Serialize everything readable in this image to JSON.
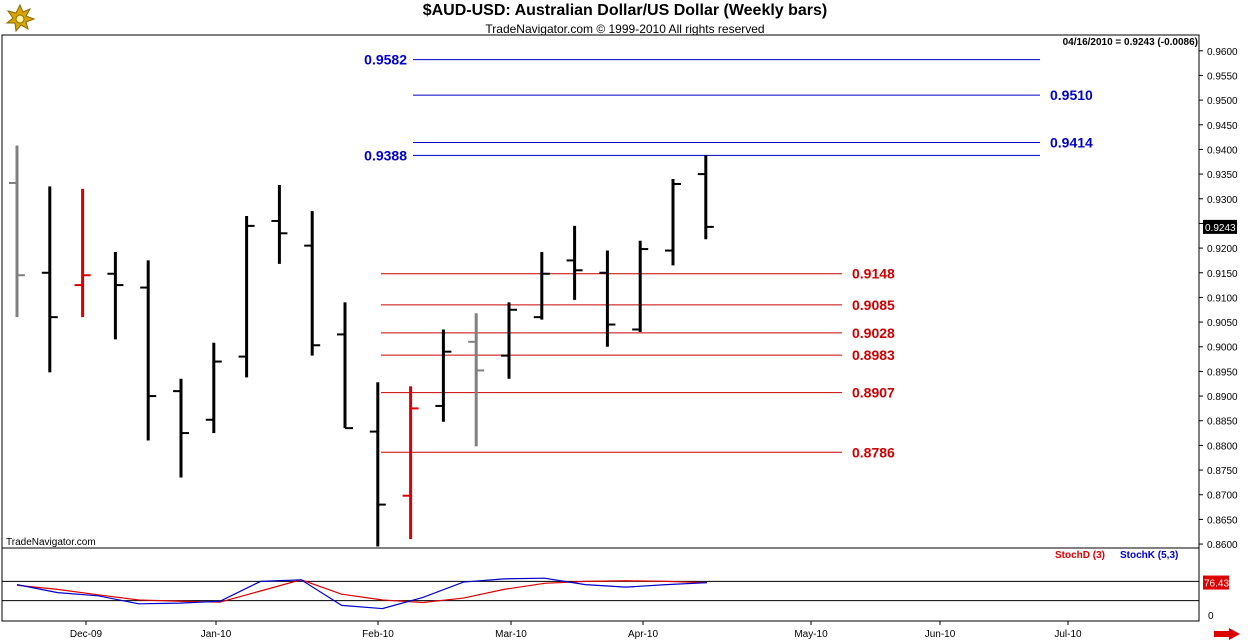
{
  "header": {
    "title": "$AUD-USD:  Australian Dollar/US Dollar  (Weekly bars)",
    "subtitle": "TradeNavigator.com © 1999-2010 All rights reserved",
    "readout": "04/16/2010 = 0.9243 (-0.0086)",
    "brand": "TradeNavigator.com"
  },
  "indicator": {
    "stochd_label": "StochD (3)",
    "stochk_label": "StochK (5,3)",
    "value_label": "76.43",
    "zero_label": "0",
    "stochd_color": "#dd0000",
    "stochk_color": "#0000cc",
    "stochd": [
      68,
      55,
      38,
      22,
      18,
      15,
      50,
      85,
      40,
      22,
      14,
      28,
      55,
      74,
      80,
      82,
      80,
      76
    ],
    "stochk": [
      70,
      45,
      35,
      10,
      12,
      18,
      80,
      85,
      5,
      -5,
      30,
      78,
      88,
      90,
      70,
      62,
      70,
      76
    ]
  },
  "chart_data": {
    "type": "ohlc",
    "title": "$AUD-USD:  Australian Dollar/US Dollar  (Weekly bars)",
    "ylim": [
      0.8592,
      0.9632
    ],
    "y_ticks": [
      "0.9600",
      "0.9550",
      "0.9500",
      "0.9450",
      "0.9400",
      "0.9350",
      "0.9300",
      "0.9250",
      "0.9200",
      "0.9150",
      "0.9100",
      "0.9050",
      "0.9000",
      "0.8950",
      "0.8900",
      "0.8850",
      "0.8800",
      "0.8750",
      "0.8700",
      "0.8650",
      "0.8600"
    ],
    "x_labels": [
      "Dec-09",
      "Jan-10",
      "Feb-10",
      "Mar-10",
      "Apr-10",
      "May-10",
      "Jun-10",
      "Jul-10"
    ],
    "last_price": "0.9243",
    "bars": [
      {
        "o": 0.9332,
        "h": 0.9408,
        "l": 0.906,
        "c": 0.9145,
        "color": "gray"
      },
      {
        "o": 0.915,
        "h": 0.9325,
        "l": 0.8948,
        "c": 0.906,
        "color": "black"
      },
      {
        "o": 0.9125,
        "h": 0.932,
        "l": 0.906,
        "c": 0.9145,
        "color": "red"
      },
      {
        "o": 0.9148,
        "h": 0.9192,
        "l": 0.9015,
        "c": 0.9125,
        "color": "black"
      },
      {
        "o": 0.912,
        "h": 0.9175,
        "l": 0.881,
        "c": 0.89,
        "color": "black"
      },
      {
        "o": 0.891,
        "h": 0.8935,
        "l": 0.8735,
        "c": 0.8825,
        "color": "black"
      },
      {
        "o": 0.8852,
        "h": 0.9008,
        "l": 0.8825,
        "c": 0.897,
        "color": "black"
      },
      {
        "o": 0.898,
        "h": 0.9265,
        "l": 0.8938,
        "c": 0.9245,
        "color": "black"
      },
      {
        "o": 0.9255,
        "h": 0.9328,
        "l": 0.9168,
        "c": 0.923,
        "color": "black"
      },
      {
        "o": 0.9205,
        "h": 0.9275,
        "l": 0.8982,
        "c": 0.9003,
        "color": "black"
      },
      {
        "o": 0.9025,
        "h": 0.909,
        "l": 0.8835,
        "c": 0.8835,
        "color": "black"
      },
      {
        "o": 0.8828,
        "h": 0.8928,
        "l": 0.8595,
        "c": 0.868,
        "color": "black"
      },
      {
        "o": 0.8698,
        "h": 0.892,
        "l": 0.861,
        "c": 0.8875,
        "color": "red"
      },
      {
        "o": 0.888,
        "h": 0.9035,
        "l": 0.8848,
        "c": 0.899,
        "color": "black"
      },
      {
        "o": 0.901,
        "h": 0.9068,
        "l": 0.8798,
        "c": 0.8952,
        "color": "gray"
      },
      {
        "o": 0.8982,
        "h": 0.909,
        "l": 0.8935,
        "c": 0.9075,
        "color": "black"
      },
      {
        "o": 0.906,
        "h": 0.9192,
        "l": 0.9055,
        "c": 0.9148,
        "color": "black"
      },
      {
        "o": 0.9175,
        "h": 0.9245,
        "l": 0.9095,
        "c": 0.9155,
        "color": "black"
      },
      {
        "o": 0.915,
        "h": 0.9195,
        "l": 0.9,
        "c": 0.9045,
        "color": "black"
      },
      {
        "o": 0.9035,
        "h": 0.9215,
        "l": 0.903,
        "c": 0.9198,
        "color": "black"
      },
      {
        "o": 0.9195,
        "h": 0.934,
        "l": 0.9165,
        "c": 0.933,
        "color": "black"
      },
      {
        "o": 0.935,
        "h": 0.9388,
        "l": 0.9218,
        "c": 0.9243,
        "color": "black"
      }
    ],
    "levels": [
      {
        "value": 0.9582,
        "label": "0.9582",
        "color": "#0000cc",
        "label_side": "left"
      },
      {
        "value": 0.951,
        "label": "0.9510",
        "color": "#0000cc",
        "label_side": "right"
      },
      {
        "value": 0.9414,
        "label": "0.9414",
        "color": "#0000cc",
        "label_side": "right"
      },
      {
        "value": 0.9388,
        "label": "0.9388",
        "color": "#0000cc",
        "label_side": "left"
      },
      {
        "value": 0.9148,
        "label": "0.9148",
        "color": "#cc0000",
        "label_side": "right"
      },
      {
        "value": 0.9085,
        "label": "0.9085",
        "color": "#cc0000",
        "label_side": "right"
      },
      {
        "value": 0.9028,
        "label": "0.9028",
        "color": "#cc0000",
        "label_side": "right"
      },
      {
        "value": 0.8983,
        "label": "0.8983",
        "color": "#cc0000",
        "label_side": "right"
      },
      {
        "value": 0.8907,
        "label": "0.8907",
        "color": "#cc0000",
        "label_side": "right"
      },
      {
        "value": 0.8786,
        "label": "0.8786",
        "color": "#cc0000",
        "label_side": "right"
      }
    ]
  }
}
